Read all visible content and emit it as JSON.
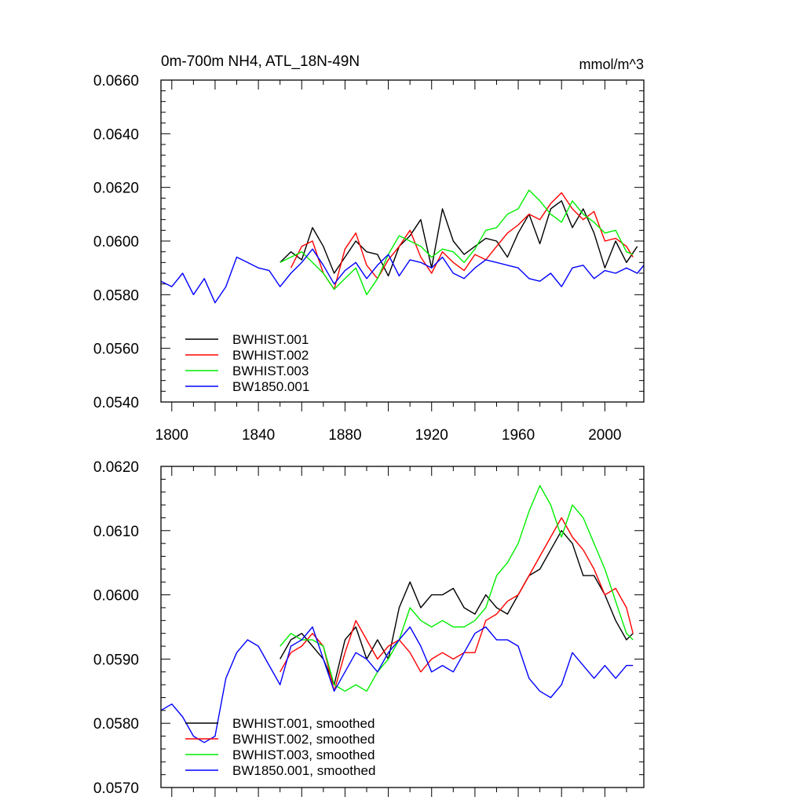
{
  "chart_data": [
    {
      "type": "line",
      "title_left": "0m-700m NH4, ATL_18N-49N",
      "title_right": "mmol/m^3",
      "xlim": [
        1795,
        2018
      ],
      "ylim": [
        0.054,
        0.066
      ],
      "xticks": [
        1800,
        1840,
        1880,
        1920,
        1960,
        2000
      ],
      "xtick_labels": [
        "1800",
        "1840",
        "1880",
        "1920",
        "1960",
        "2000"
      ],
      "yticks": [
        0.054,
        0.056,
        0.058,
        0.06,
        0.062,
        0.064,
        0.066
      ],
      "ytick_labels": [
        "0.0540",
        "0.0560",
        "0.0580",
        "0.0600",
        "0.0620",
        "0.0640",
        "0.0660"
      ],
      "legend_position": "bottom-left",
      "series": [
        {
          "name": "BWHIST.001",
          "color": "#000000",
          "x": [
            1850,
            1855,
            1860,
            1865,
            1870,
            1875,
            1880,
            1885,
            1890,
            1895,
            1900,
            1905,
            1910,
            1915,
            1920,
            1925,
            1930,
            1935,
            1940,
            1945,
            1950,
            1955,
            1960,
            1965,
            1970,
            1975,
            1980,
            1985,
            1990,
            1995,
            2000,
            2005,
            2010,
            2015
          ],
          "values": [
            0.0592,
            0.0596,
            0.0593,
            0.0605,
            0.0598,
            0.0588,
            0.0594,
            0.06,
            0.0596,
            0.0595,
            0.0587,
            0.0598,
            0.0602,
            0.0608,
            0.059,
            0.0612,
            0.06,
            0.0595,
            0.0598,
            0.0601,
            0.06,
            0.0594,
            0.0603,
            0.061,
            0.0599,
            0.0612,
            0.0615,
            0.0605,
            0.0612,
            0.0603,
            0.059,
            0.06,
            0.0592,
            0.0598
          ]
        },
        {
          "name": "BWHIST.002",
          "color": "#ff0000",
          "x": [
            1855,
            1860,
            1865,
            1870,
            1875,
            1880,
            1885,
            1890,
            1895,
            1900,
            1905,
            1910,
            1915,
            1920,
            1925,
            1930,
            1935,
            1940,
            1945,
            1950,
            1955,
            1960,
            1965,
            1970,
            1975,
            1980,
            1985,
            1990,
            1995,
            2000,
            2005,
            2010,
            2013
          ],
          "values": [
            0.059,
            0.0598,
            0.06,
            0.0588,
            0.0582,
            0.0597,
            0.0603,
            0.0591,
            0.0586,
            0.0593,
            0.0598,
            0.0604,
            0.0594,
            0.0588,
            0.0596,
            0.0592,
            0.0589,
            0.0595,
            0.0593,
            0.0598,
            0.0603,
            0.0606,
            0.061,
            0.0608,
            0.0614,
            0.0618,
            0.0612,
            0.0608,
            0.0611,
            0.06,
            0.0601,
            0.0598,
            0.0594
          ]
        },
        {
          "name": "BWHIST.003",
          "color": "#00ee00",
          "x": [
            1850,
            1855,
            1860,
            1865,
            1870,
            1875,
            1880,
            1885,
            1890,
            1895,
            1900,
            1905,
            1910,
            1915,
            1920,
            1925,
            1930,
            1935,
            1940,
            1945,
            1950,
            1955,
            1960,
            1965,
            1970,
            1975,
            1980,
            1985,
            1990,
            1995,
            2000,
            2005,
            2010,
            2013
          ],
          "values": [
            0.0592,
            0.0594,
            0.0596,
            0.0592,
            0.0588,
            0.0582,
            0.0586,
            0.059,
            0.058,
            0.0586,
            0.0595,
            0.0602,
            0.06,
            0.0598,
            0.0594,
            0.0597,
            0.0596,
            0.0592,
            0.0597,
            0.0604,
            0.0605,
            0.061,
            0.0612,
            0.0619,
            0.0615,
            0.061,
            0.0607,
            0.0615,
            0.061,
            0.0607,
            0.0603,
            0.0604,
            0.0596,
            0.0595
          ]
        },
        {
          "name": "BW1850.001",
          "color": "#0000ff",
          "x": [
            1795,
            1800,
            1805,
            1810,
            1815,
            1820,
            1825,
            1830,
            1835,
            1840,
            1845,
            1850,
            1855,
            1860,
            1865,
            1870,
            1875,
            1880,
            1885,
            1890,
            1895,
            1900,
            1905,
            1910,
            1915,
            1920,
            1925,
            1930,
            1935,
            1940,
            1945,
            1950,
            1955,
            1960,
            1965,
            1970,
            1975,
            1980,
            1985,
            1990,
            1995,
            2000,
            2005,
            2010,
            2015,
            2018
          ],
          "values": [
            0.0585,
            0.0583,
            0.0588,
            0.058,
            0.0586,
            0.0577,
            0.0583,
            0.0594,
            0.0592,
            0.059,
            0.0589,
            0.0583,
            0.0588,
            0.0592,
            0.0597,
            0.0591,
            0.0584,
            0.0589,
            0.0592,
            0.0586,
            0.0591,
            0.0595,
            0.0587,
            0.0593,
            0.0592,
            0.059,
            0.0594,
            0.0588,
            0.0586,
            0.059,
            0.0593,
            0.0592,
            0.0591,
            0.059,
            0.0586,
            0.0585,
            0.0588,
            0.0583,
            0.059,
            0.0591,
            0.0586,
            0.0589,
            0.0588,
            0.059,
            0.0588,
            0.0591
          ]
        }
      ]
    },
    {
      "type": "line",
      "xlim": [
        1795,
        2018
      ],
      "ylim": [
        0.057,
        0.062
      ],
      "xticks": [
        1800,
        1840,
        1880,
        1920,
        1960,
        2000
      ],
      "yticks": [
        0.057,
        0.058,
        0.059,
        0.06,
        0.061,
        0.062
      ],
      "ytick_labels": [
        "0.0570",
        "0.0580",
        "0.0590",
        "0.0600",
        "0.0610",
        "0.0620"
      ],
      "legend_position": "bottom-left",
      "series": [
        {
          "name": "BWHIST.001, smoothed",
          "color": "#000000",
          "x": [
            1850,
            1855,
            1860,
            1865,
            1870,
            1875,
            1880,
            1885,
            1890,
            1895,
            1900,
            1905,
            1910,
            1915,
            1920,
            1925,
            1930,
            1935,
            1940,
            1945,
            1950,
            1955,
            1960,
            1965,
            1970,
            1975,
            1980,
            1985,
            1990,
            1995,
            2000,
            2005,
            2010,
            2013
          ],
          "values": [
            0.059,
            0.0593,
            0.0594,
            0.0592,
            0.059,
            0.0586,
            0.0593,
            0.0595,
            0.059,
            0.0593,
            0.059,
            0.0598,
            0.0602,
            0.0598,
            0.06,
            0.06,
            0.0601,
            0.0598,
            0.0597,
            0.06,
            0.0598,
            0.0597,
            0.06,
            0.0603,
            0.0604,
            0.0607,
            0.061,
            0.0608,
            0.0603,
            0.0603,
            0.06,
            0.0596,
            0.0593,
            0.0594
          ]
        },
        {
          "name": "BWHIST.002, smoothed",
          "color": "#ff0000",
          "x": [
            1850,
            1855,
            1860,
            1865,
            1870,
            1875,
            1880,
            1885,
            1890,
            1895,
            1900,
            1905,
            1910,
            1915,
            1920,
            1925,
            1930,
            1935,
            1940,
            1945,
            1950,
            1955,
            1960,
            1965,
            1970,
            1975,
            1980,
            1985,
            1990,
            1995,
            2000,
            2005,
            2010,
            2013
          ],
          "values": [
            0.0588,
            0.0591,
            0.0592,
            0.0594,
            0.0592,
            0.0585,
            0.0591,
            0.0596,
            0.0593,
            0.059,
            0.0592,
            0.0593,
            0.0591,
            0.0588,
            0.059,
            0.0591,
            0.059,
            0.0591,
            0.0591,
            0.0596,
            0.0597,
            0.0599,
            0.06,
            0.0603,
            0.0606,
            0.0609,
            0.0612,
            0.0609,
            0.0607,
            0.0604,
            0.06,
            0.0601,
            0.0598,
            0.0594
          ]
        },
        {
          "name": "BWHIST.003, smoothed",
          "color": "#00ee00",
          "x": [
            1850,
            1855,
            1860,
            1865,
            1870,
            1875,
            1880,
            1885,
            1890,
            1895,
            1900,
            1905,
            1910,
            1915,
            1920,
            1925,
            1930,
            1935,
            1940,
            1945,
            1950,
            1955,
            1960,
            1965,
            1970,
            1975,
            1980,
            1985,
            1990,
            1995,
            2000,
            2005,
            2010,
            2013
          ],
          "values": [
            0.0592,
            0.0594,
            0.0593,
            0.0593,
            0.0592,
            0.0586,
            0.0585,
            0.0586,
            0.0585,
            0.0588,
            0.059,
            0.0593,
            0.0598,
            0.0596,
            0.0595,
            0.0596,
            0.0595,
            0.0595,
            0.0596,
            0.0598,
            0.0603,
            0.0605,
            0.0608,
            0.0613,
            0.0617,
            0.0614,
            0.0609,
            0.0614,
            0.0612,
            0.0608,
            0.0604,
            0.0599,
            0.0594,
            0.0593
          ]
        },
        {
          "name": "BW1850.001, smoothed",
          "color": "#0000ff",
          "x": [
            1795,
            1800,
            1805,
            1810,
            1815,
            1820,
            1825,
            1830,
            1835,
            1840,
            1845,
            1850,
            1855,
            1860,
            1865,
            1870,
            1875,
            1880,
            1885,
            1890,
            1895,
            1900,
            1905,
            1910,
            1915,
            1920,
            1925,
            1930,
            1935,
            1940,
            1945,
            1950,
            1955,
            1960,
            1965,
            1970,
            1975,
            1980,
            1985,
            1990,
            1995,
            2000,
            2005,
            2010,
            2013
          ],
          "values": [
            0.0582,
            0.0583,
            0.0581,
            0.0578,
            0.0577,
            0.0578,
            0.0587,
            0.0591,
            0.0593,
            0.0592,
            0.0589,
            0.0586,
            0.0592,
            0.0593,
            0.0595,
            0.059,
            0.0585,
            0.0588,
            0.0591,
            0.059,
            0.0588,
            0.0591,
            0.0593,
            0.0595,
            0.0592,
            0.0588,
            0.0589,
            0.0588,
            0.0591,
            0.0594,
            0.0595,
            0.0593,
            0.0593,
            0.0592,
            0.0587,
            0.0585,
            0.0584,
            0.0586,
            0.0591,
            0.0589,
            0.0587,
            0.0589,
            0.0587,
            0.0589,
            0.0589
          ]
        }
      ]
    }
  ]
}
